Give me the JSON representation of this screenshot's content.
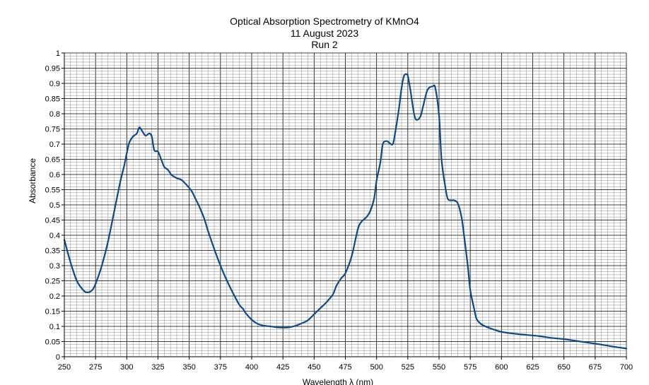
{
  "chart_data": {
    "type": "line",
    "title": [
      "Optical Absorption Spectrometry of KMnO4",
      "11 August 2023",
      "Run 2"
    ],
    "xlabel": "Wavelength λ (nm)",
    "ylabel": "Absorbance",
    "xlim": [
      250,
      700
    ],
    "ylim": [
      0,
      1
    ],
    "xticks": [
      250,
      275,
      300,
      325,
      350,
      375,
      400,
      425,
      450,
      475,
      500,
      525,
      550,
      575,
      600,
      625,
      650,
      675,
      700
    ],
    "yticks": [
      0,
      0.05,
      0.1,
      0.15,
      0.2,
      0.25,
      0.3,
      0.35,
      0.4,
      0.45,
      0.5,
      0.55,
      0.6,
      0.65,
      0.7,
      0.75,
      0.8,
      0.85,
      0.9,
      0.95,
      1
    ],
    "ytick_labels": [
      "0",
      "0.05",
      "0.1",
      "0.15",
      "0.2",
      "0.25",
      "0.3",
      "0.35",
      "0.4",
      "0.45",
      "0.5",
      "0.55",
      "0.6",
      "0.65",
      "0.7",
      "0.75",
      "0.8",
      "0.85",
      "0.9",
      "0.95",
      "1"
    ],
    "grid": true,
    "minor_grid": true,
    "legend": "none",
    "line_color": "#0b4a86",
    "series": [
      {
        "x": [
          250,
          255,
          260,
          265,
          268,
          272,
          275,
          280,
          285,
          290,
          295,
          298,
          300,
          302,
          305,
          308,
          310,
          312,
          315,
          318,
          320,
          322,
          325,
          328,
          330,
          333,
          336,
          340,
          343,
          345,
          348,
          352,
          355,
          358,
          362,
          365,
          370,
          375,
          380,
          385,
          390,
          393,
          395,
          400,
          405,
          410,
          415,
          420,
          425,
          430,
          435,
          440,
          445,
          450,
          455,
          460,
          465,
          468,
          472,
          475,
          480,
          485,
          488,
          492,
          495,
          498,
          500,
          503,
          505,
          508,
          510,
          513,
          515,
          518,
          520,
          522,
          524,
          525,
          527,
          530,
          532,
          535,
          537,
          540,
          542,
          545,
          547,
          550,
          552,
          555,
          557,
          560,
          562,
          565,
          568,
          570,
          573,
          575,
          578,
          580,
          583,
          585,
          590,
          595,
          600,
          610,
          620,
          630,
          640,
          650,
          660,
          670,
          680,
          690,
          700
        ],
        "y": [
          0.385,
          0.31,
          0.25,
          0.22,
          0.212,
          0.218,
          0.24,
          0.3,
          0.38,
          0.48,
          0.58,
          0.63,
          0.67,
          0.705,
          0.725,
          0.735,
          0.755,
          0.745,
          0.728,
          0.735,
          0.725,
          0.68,
          0.675,
          0.645,
          0.625,
          0.615,
          0.598,
          0.588,
          0.584,
          0.578,
          0.565,
          0.545,
          0.52,
          0.495,
          0.455,
          0.415,
          0.355,
          0.3,
          0.252,
          0.21,
          0.172,
          0.158,
          0.145,
          0.122,
          0.108,
          0.102,
          0.1,
          0.097,
          0.096,
          0.097,
          0.102,
          0.11,
          0.12,
          0.14,
          0.16,
          0.18,
          0.205,
          0.235,
          0.26,
          0.275,
          0.33,
          0.42,
          0.445,
          0.46,
          0.48,
          0.52,
          0.58,
          0.64,
          0.7,
          0.71,
          0.705,
          0.7,
          0.74,
          0.82,
          0.885,
          0.925,
          0.93,
          0.925,
          0.88,
          0.8,
          0.78,
          0.79,
          0.82,
          0.87,
          0.885,
          0.89,
          0.885,
          0.795,
          0.65,
          0.56,
          0.52,
          0.515,
          0.515,
          0.505,
          0.46,
          0.4,
          0.3,
          0.22,
          0.16,
          0.125,
          0.11,
          0.104,
          0.095,
          0.088,
          0.082,
          0.076,
          0.072,
          0.068,
          0.062,
          0.058,
          0.052,
          0.046,
          0.04,
          0.033,
          0.027
        ]
      }
    ]
  }
}
